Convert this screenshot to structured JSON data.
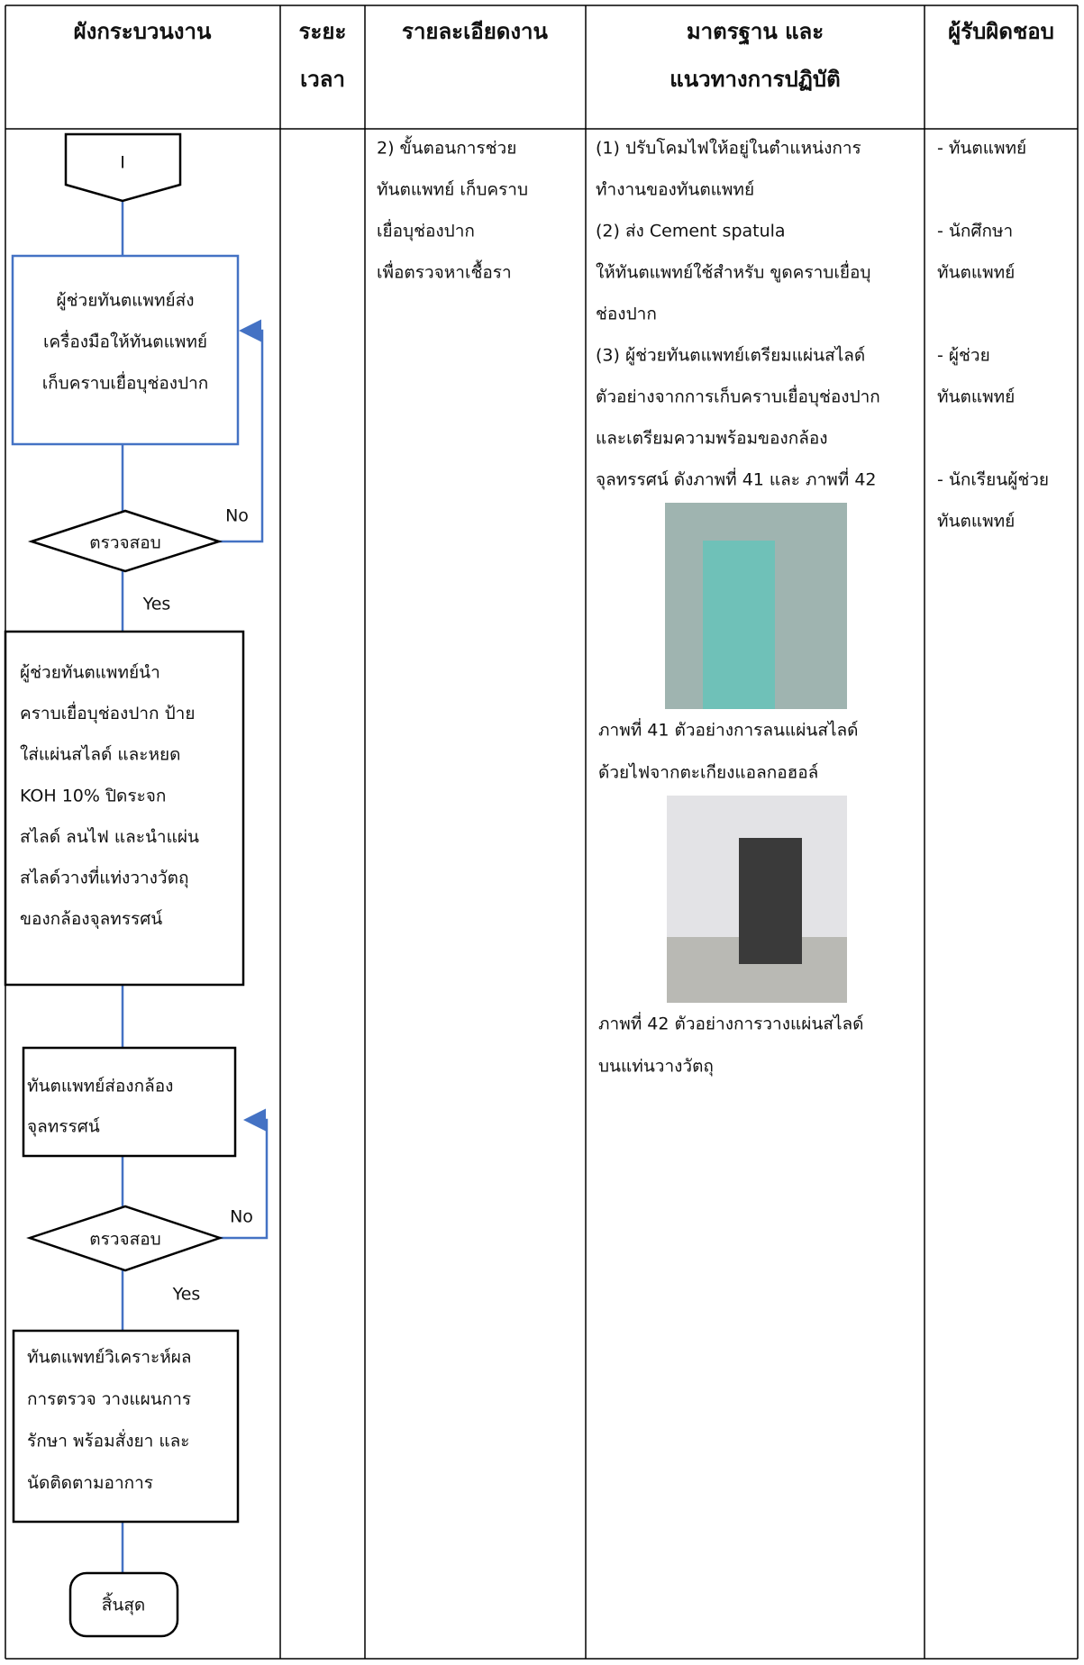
{
  "header": {
    "columns": [
      {
        "lines": [
          "ผังกระบวนงาน"
        ]
      },
      {
        "lines": [
          "ระยะ",
          "เวลา"
        ]
      },
      {
        "lines": [
          "รายละเอียดงาน"
        ]
      },
      {
        "lines": [
          "มาตรฐาน และ",
          "แนวทางการปฏิบัติ"
        ]
      },
      {
        "lines": [
          "ผู้รับผิดชอบ"
        ]
      }
    ]
  },
  "flowchart": {
    "start": "I",
    "nodes": [
      {
        "lines": [
          "ผู้ช่วยทันตแพทย์ส่ง",
          "เครื่องมือให้ทันตแพทย์",
          "เก็บคราบเยื่อบุช่องปาก"
        ]
      },
      {
        "lines": [
          "ตรวจสอบ"
        ]
      },
      {
        "lines": [
          "ผู้ช่วยทันตแพทย์นำ",
          "คราบเยื่อบุช่องปาก ป้าย",
          "ใส่แผ่นสไลด์ และหยด",
          "KOH 10% ปิดระจก",
          "สไลด์ ลนไฟ และนำแผ่น",
          "สไลด์วางที่แท่งวางวัตถุ",
          "ของกล้องจุลทรรศน์"
        ]
      },
      {
        "lines": [
          "ทันตแพทย์ส่องกล้อง",
          "จุลทรรศน์"
        ]
      },
      {
        "lines": [
          "ตรวจสอบ"
        ]
      },
      {
        "lines": [
          "ทันตแพทย์วิเคราะห์ผล",
          "การตรวจ  วางแผนการ",
          "รักษา พร้อมสั่งยา และ",
          "นัดติดตามอาการ"
        ]
      },
      {
        "lines": [
          "สิ้นสุด"
        ]
      }
    ],
    "labels": [
      "No",
      "Yes",
      "No",
      "Yes"
    ]
  },
  "details": {
    "lines": [
      "2) ขั้นตอนการช่วย",
      "ทันตแพทย์ เก็บคราบ",
      "เยื่อบุช่องปาก",
      "เพื่อตรวจหาเชื้อรา"
    ]
  },
  "standards": {
    "lines": [
      "(1) ปรับโคมไฟให้อยู่ในตำแหน่งการ",
      "ทำงานของทันตแพทย์",
      "(2) ส่ง Cement spatula",
      "ให้ทันตแพทย์ใช้สำหรับ ขูดคราบเยื่อบุ",
      "ช่องปาก",
      "(3) ผู้ช่วยทันตแพทย์เตรียมแผ่นสไลด์",
      "ตัวอย่างจากการเก็บคราบเยื่อบุช่องปาก",
      "และเตรียมความพร้อมของกล้อง",
      "จุลทรรศน์ ดังภาพที่ 41 และ ภาพที่ 42"
    ],
    "captions": [
      {
        "lines": [
          "ภาพที่ 41 ตัวอย่างการลนแผ่นสไลด์",
          "ด้วยไฟจากตะเกียงแอลกอฮอล์"
        ]
      },
      {
        "lines": [
          "ภาพที่ 42 ตัวอย่างการวางแผ่นสไลด์",
          "บนแท่นวางวัตถุ"
        ]
      }
    ]
  },
  "responsible": [
    {
      "lines": [
        "- ทันตแพทย์"
      ]
    },
    {
      "lines": [
        "- นักศึกษา",
        "ทันตแพทย์"
      ]
    },
    {
      "lines": [
        "- ผู้ช่วย",
        "ทันตแพทย์"
      ]
    },
    {
      "lines": [
        "- นักเรียนผู้ช่วย",
        "ทันตแพทย์"
      ]
    }
  ]
}
